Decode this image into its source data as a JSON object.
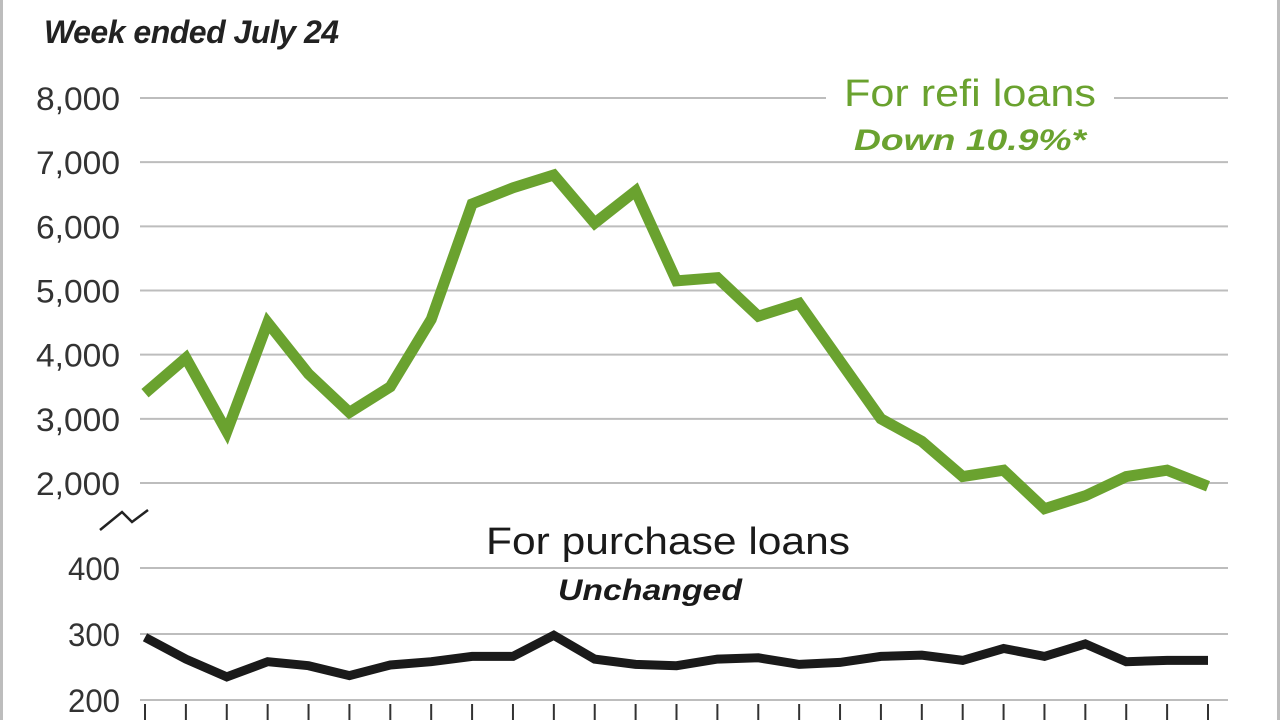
{
  "header": {
    "period_label": "Week ended July 24"
  },
  "colors": {
    "refi": "#6aa22f",
    "purchase": "#1a1a1a",
    "grid": "#bdbdbd",
    "axis_text": "#333333"
  },
  "chart_data": [
    {
      "type": "line",
      "title": "For refi loans",
      "subtitle": "Down 10.9%*",
      "xlabel": "",
      "ylabel": "",
      "ylim": [
        2000,
        8000
      ],
      "y_ticks": [
        "2,000",
        "3,000",
        "4,000",
        "5,000",
        "6,000",
        "7,000",
        "8,000"
      ],
      "grid": true,
      "series": [
        {
          "values": [
            3400,
            3950,
            2800,
            4500,
            3700,
            3100,
            3500,
            4550,
            6350,
            6600,
            6800,
            6050,
            6550,
            5150,
            5200,
            4600,
            4800,
            3900,
            3000,
            2650,
            2100,
            2200,
            1600,
            1800,
            2100,
            2200,
            1950
          ]
        }
      ]
    },
    {
      "type": "line",
      "title": "For purchase loans",
      "subtitle": "Unchanged",
      "xlabel": "",
      "ylabel": "",
      "ylim": [
        200,
        400
      ],
      "y_ticks": [
        "200",
        "300",
        "400"
      ],
      "grid": true,
      "series": [
        {
          "values": [
            295,
            262,
            235,
            258,
            252,
            237,
            253,
            258,
            266,
            266,
            298,
            262,
            254,
            252,
            262,
            264,
            254,
            257,
            266,
            268,
            260,
            278,
            266,
            285,
            258,
            260,
            260
          ]
        }
      ]
    }
  ]
}
